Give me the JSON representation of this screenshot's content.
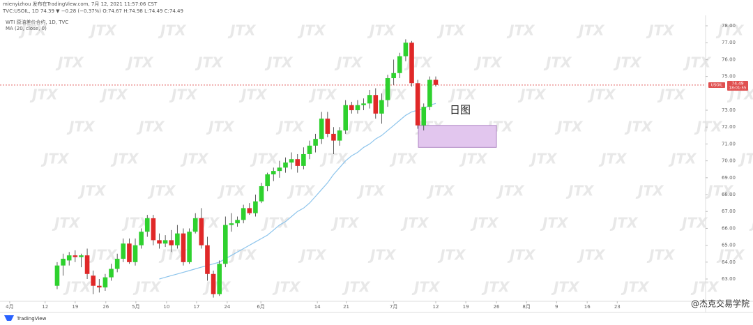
{
  "chart_data": {
    "type": "candlestick",
    "header": [
      "mienyizhou 发布在TradingView.com, 7月 12, 2021 11:57:06 CST",
      "TVC:USOIL, 1D 74.39 ▼ −0.28 (−0.37%) O:74.67 H:74.98 L:74.49 C:74.49",
      "WTI 原油差价合约, 1D, TVC"
    ],
    "annotation": "日图",
    "watermark": "JTX",
    "brand": "TradingView",
    "credit": "@杰克交易学院",
    "price_tag": "USOIL",
    "last_price": 74.49,
    "countdown": "18:01:55",
    "up_color": "#2ed12e",
    "down_color": "#e02828",
    "ylim": [
      61.68,
      78.62
    ],
    "yticks": [
      {
        "value": 63,
        "label": "63.00"
      },
      {
        "value": 64,
        "label": "64.00"
      },
      {
        "value": 65,
        "label": "65.00"
      },
      {
        "value": 66,
        "label": "66.00"
      },
      {
        "value": 67,
        "label": "67.00"
      },
      {
        "value": 68,
        "label": "68.00"
      },
      {
        "value": 69,
        "label": "69.00"
      },
      {
        "value": 70,
        "label": "70.00"
      },
      {
        "value": 71,
        "label": "71.00"
      },
      {
        "value": 72,
        "label": "72.00"
      },
      {
        "value": 73,
        "label": "73.00"
      },
      {
        "value": 75,
        "label": "75.00"
      },
      {
        "value": 76,
        "label": "76.00"
      },
      {
        "value": 77,
        "label": "77.00"
      },
      {
        "value": 78,
        "label": "78.00"
      }
    ],
    "xlim": [
      -9.51,
      107.9
    ],
    "xticks": [
      {
        "value": -7.9,
        "label": "4月"
      },
      {
        "value": -2.0,
        "label": "12"
      },
      {
        "value": 3.0,
        "label": "19"
      },
      {
        "value": 8.1,
        "label": "26"
      },
      {
        "value": 13.1,
        "label": "5月"
      },
      {
        "value": 18.2,
        "label": "10"
      },
      {
        "value": 23.2,
        "label": "17"
      },
      {
        "value": 28.3,
        "label": "24"
      },
      {
        "value": 33.9,
        "label": "6月"
      },
      {
        "value": 43.3,
        "label": "14"
      },
      {
        "value": 48.1,
        "label": "21"
      },
      {
        "value": 56.0,
        "label": "7月"
      },
      {
        "value": 63.0,
        "label": "12"
      },
      {
        "value": 68.0,
        "label": "19"
      },
      {
        "value": 73.1,
        "label": "26"
      },
      {
        "value": 78.1,
        "label": "8月"
      },
      {
        "value": 83.1,
        "label": "9"
      },
      {
        "value": 88.2,
        "label": "16"
      },
      {
        "value": 93.2,
        "label": "23"
      }
    ],
    "zone": {
      "xlim": [
        60.1,
        73.1
      ],
      "ylim": [
        70.8,
        72.1
      ],
      "color": "#e2c6ee"
    },
    "ohlc": [
      [
        62.6,
        64.0,
        62.4,
        63.8
      ],
      [
        63.8,
        64.5,
        63.2,
        64.2
      ],
      [
        64.1,
        64.6,
        63.8,
        64.4
      ],
      [
        64.4,
        64.7,
        64.0,
        64.3
      ],
      [
        64.3,
        64.5,
        63.7,
        64.4
      ],
      [
        64.4,
        64.8,
        63.0,
        63.3
      ],
      [
        63.2,
        63.5,
        62.1,
        62.6
      ],
      [
        62.6,
        63.0,
        62.2,
        62.5
      ],
      [
        62.5,
        63.3,
        62.3,
        63.1
      ],
      [
        63.1,
        63.9,
        62.9,
        63.6
      ],
      [
        63.6,
        64.5,
        63.4,
        64.2
      ],
      [
        64.2,
        65.4,
        64.0,
        65.1
      ],
      [
        65.1,
        65.4,
        63.9,
        64.0
      ],
      [
        64.0,
        65.4,
        63.8,
        65.0
      ],
      [
        65.0,
        66.0,
        64.8,
        65.8
      ],
      [
        65.8,
        66.8,
        65.5,
        66.6
      ],
      [
        66.6,
        66.8,
        65.0,
        65.3
      ],
      [
        65.3,
        65.7,
        64.8,
        65.1
      ],
      [
        65.1,
        65.6,
        64.9,
        65.3
      ],
      [
        65.3,
        65.9,
        64.6,
        65.0
      ],
      [
        65.0,
        66.2,
        64.8,
        65.7
      ],
      [
        65.7,
        66.0,
        63.8,
        64.0
      ],
      [
        64.0,
        66.0,
        63.9,
        65.8
      ],
      [
        65.8,
        66.9,
        65.7,
        66.6
      ],
      [
        66.6,
        67.2,
        64.8,
        65.0
      ],
      [
        65.0,
        65.5,
        62.9,
        63.3
      ],
      [
        63.3,
        63.5,
        61.9,
        62.1
      ],
      [
        62.1,
        64.1,
        62.0,
        63.9
      ],
      [
        63.9,
        66.7,
        63.7,
        66.2
      ],
      [
        66.2,
        66.9,
        65.8,
        66.3
      ],
      [
        66.3,
        66.7,
        66.1,
        66.5
      ],
      [
        66.5,
        67.4,
        66.3,
        67.2
      ],
      [
        67.2,
        67.5,
        66.8,
        66.9
      ],
      [
        66.9,
        68.0,
        66.7,
        67.6
      ],
      [
        67.6,
        68.7,
        67.5,
        68.5
      ],
      [
        68.5,
        69.3,
        68.2,
        69.2
      ],
      [
        69.2,
        69.6,
        68.8,
        69.4
      ],
      [
        69.4,
        70.0,
        69.0,
        69.6
      ],
      [
        69.6,
        70.2,
        69.3,
        69.9
      ],
      [
        69.9,
        70.5,
        69.5,
        70.1
      ],
      [
        70.1,
        70.4,
        69.3,
        69.7
      ],
      [
        69.7,
        70.8,
        69.5,
        70.4
      ],
      [
        70.4,
        71.2,
        70.1,
        70.9
      ],
      [
        70.9,
        71.6,
        70.5,
        71.3
      ],
      [
        71.3,
        72.9,
        71.0,
        72.5
      ],
      [
        72.5,
        72.9,
        71.4,
        71.6
      ],
      [
        71.6,
        72.0,
        70.4,
        71.2
      ],
      [
        71.2,
        72.0,
        70.9,
        71.8
      ],
      [
        71.8,
        73.6,
        71.6,
        73.3
      ],
      [
        73.3,
        73.5,
        72.8,
        73.0
      ],
      [
        73.0,
        73.6,
        72.8,
        73.3
      ],
      [
        73.3,
        73.7,
        73.0,
        73.4
      ],
      [
        73.4,
        74.2,
        73.1,
        73.9
      ],
      [
        73.9,
        74.3,
        72.5,
        72.8
      ],
      [
        72.8,
        74.0,
        72.2,
        73.6
      ],
      [
        73.6,
        75.1,
        73.2,
        74.9
      ],
      [
        74.9,
        76.0,
        74.5,
        75.2
      ],
      [
        75.2,
        76.4,
        74.9,
        76.2
      ],
      [
        76.2,
        77.2,
        75.9,
        77.0
      ],
      [
        77.0,
        77.1,
        74.4,
        74.6
      ],
      [
        74.6,
        74.8,
        71.9,
        72.1
      ],
      [
        72.1,
        73.4,
        71.8,
        73.2
      ],
      [
        73.2,
        75.0,
        73.0,
        74.8
      ],
      [
        74.8,
        75.0,
        74.4,
        74.5
      ]
    ],
    "series": [
      {
        "name": "MA (20, close, 0)",
        "color": "#8cc4ec",
        "values": [
          null,
          null,
          null,
          null,
          null,
          null,
          null,
          null,
          null,
          null,
          null,
          null,
          null,
          null,
          null,
          null,
          null,
          63.0,
          63.1,
          63.2,
          63.3,
          63.4,
          63.5,
          63.6,
          63.7,
          63.8,
          63.9,
          64.0,
          64.2,
          64.4,
          64.6,
          64.8,
          65.0,
          65.2,
          65.4,
          65.6,
          65.9,
          66.2,
          66.4,
          66.7,
          67.0,
          67.2,
          67.5,
          67.9,
          68.3,
          68.7,
          69.2,
          69.6,
          70.0,
          70.3,
          70.5,
          70.8,
          71.0,
          71.3,
          71.5,
          71.8,
          72.1,
          72.4,
          72.7,
          72.9,
          73.0,
          73.1,
          73.3,
          73.4
        ]
      }
    ]
  }
}
